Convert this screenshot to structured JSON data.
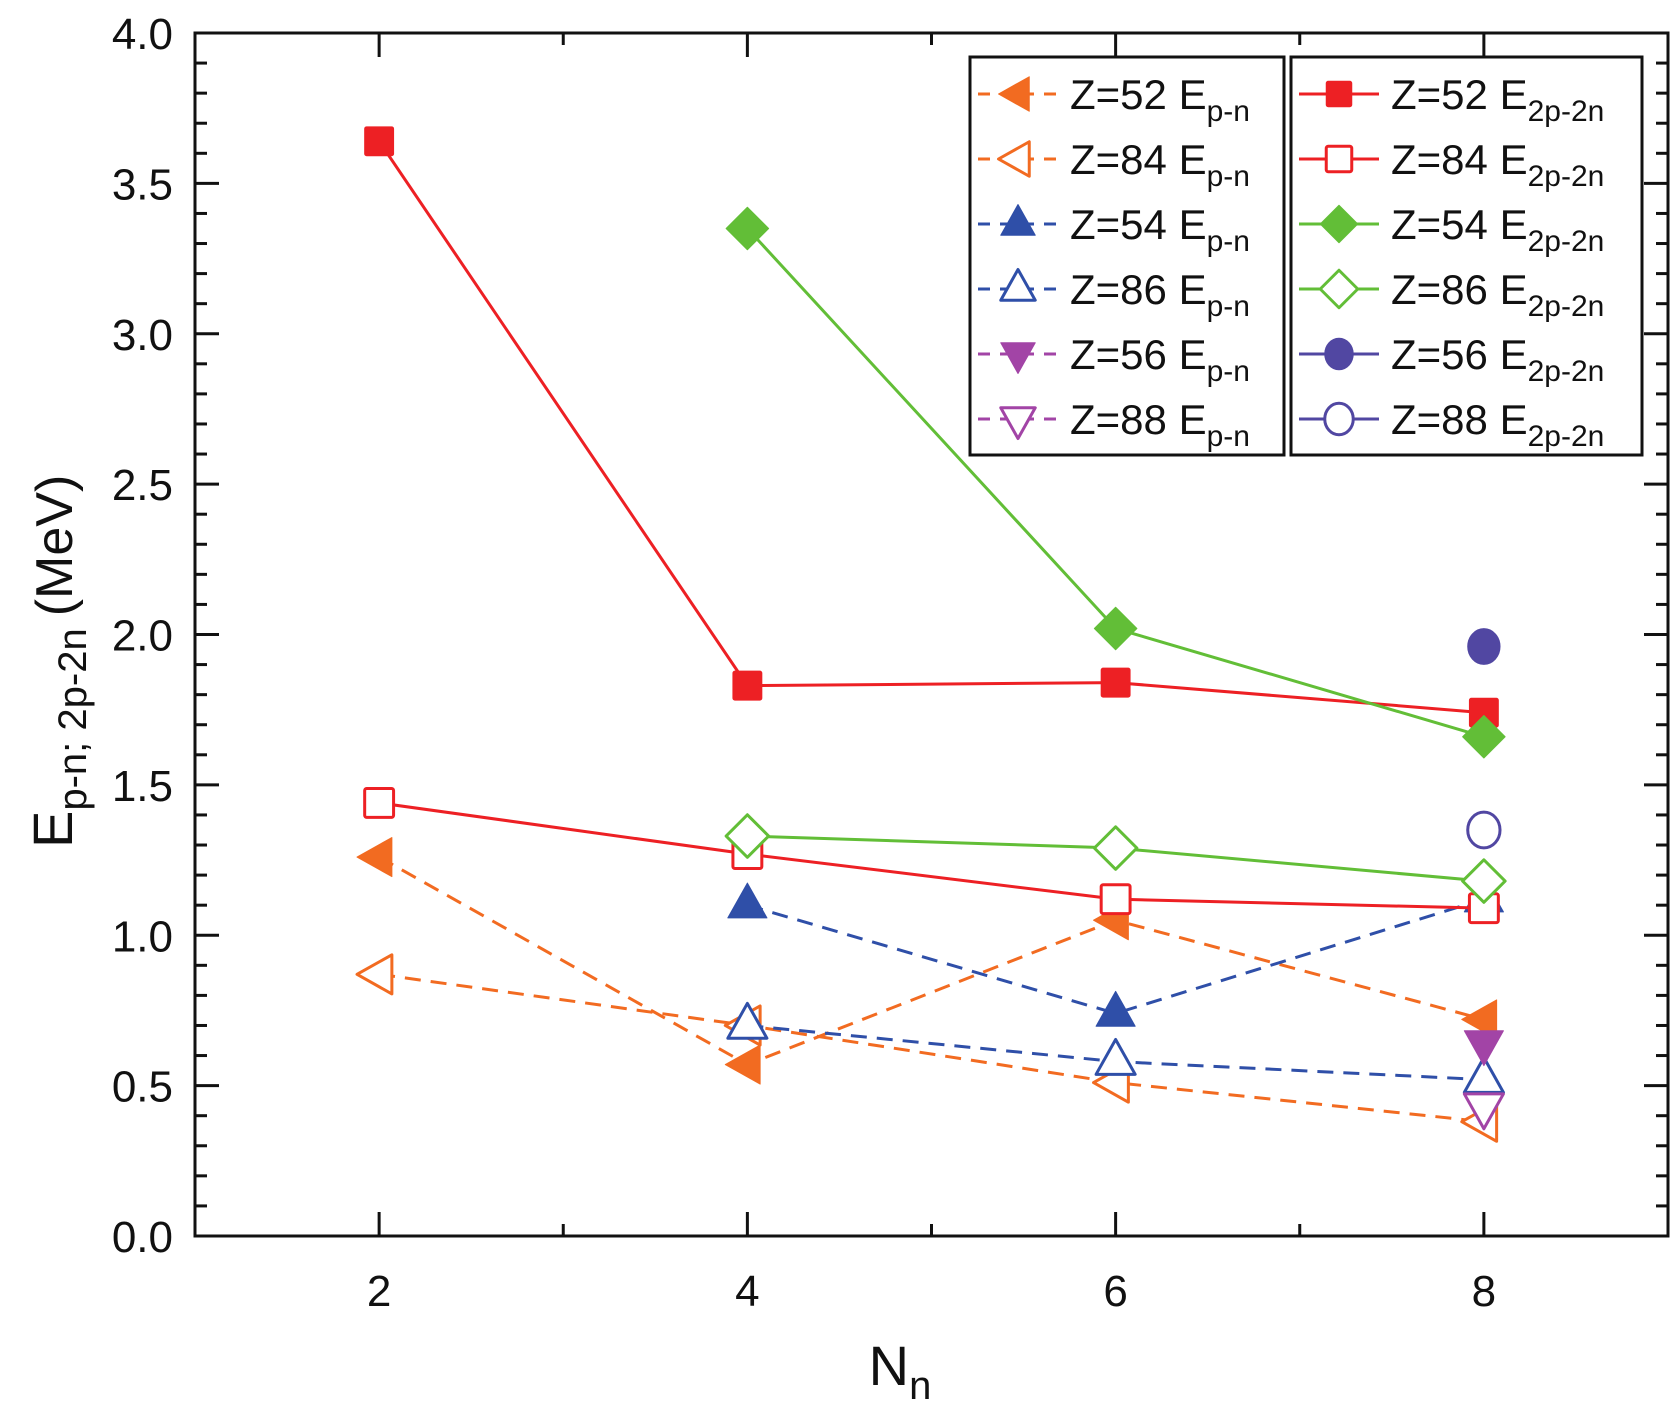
{
  "chart_data": {
    "type": "line",
    "title": "",
    "xlabel": {
      "main": "N",
      "sub": "n"
    },
    "ylabel": {
      "main": "E",
      "sub": "p-n; 2p-2n",
      "unit": "(MeV)"
    },
    "xlim": [
      1,
      9
    ],
    "ylim": [
      0.0,
      4.0
    ],
    "x_ticks": [
      2,
      4,
      6,
      8
    ],
    "x_tick_labels": [
      "2",
      "4",
      "6",
      "8"
    ],
    "y_ticks": [
      0.0,
      0.5,
      1.0,
      1.5,
      2.0,
      2.5,
      3.0,
      3.5,
      4.0
    ],
    "y_tick_labels": [
      "0.0",
      "0.5",
      "1.0",
      "1.5",
      "2.0",
      "2.5",
      "3.0",
      "3.5",
      "4.0"
    ],
    "grid": false,
    "legend_placement": "top-right",
    "series": [
      {
        "name": "Z=52 E",
        "sub": "p-n",
        "color": "#F26B21",
        "marker": "triangle-left",
        "filled": true,
        "dash": true,
        "x": [
          2,
          4,
          6,
          8
        ],
        "y": [
          1.26,
          0.57,
          1.05,
          0.72
        ]
      },
      {
        "name": "Z=84 E",
        "sub": "p-n",
        "color": "#F26B21",
        "marker": "triangle-left",
        "filled": false,
        "dash": true,
        "x": [
          2,
          4,
          6,
          8
        ],
        "y": [
          0.87,
          0.7,
          0.51,
          0.38
        ]
      },
      {
        "name": "Z=54 E",
        "sub": "p-n",
        "color": "#2F4FA8",
        "marker": "triangle-up",
        "filled": true,
        "dash": true,
        "x": [
          4,
          6,
          8
        ],
        "y": [
          1.1,
          0.74,
          1.12
        ]
      },
      {
        "name": "Z=86 E",
        "sub": "p-n",
        "color": "#2F4FA8",
        "marker": "triangle-up",
        "filled": false,
        "dash": true,
        "x": [
          4,
          6,
          8
        ],
        "y": [
          0.7,
          0.58,
          0.52
        ]
      },
      {
        "name": "Z=56 E",
        "sub": "p-n",
        "color": "#A244A6",
        "marker": "triangle-down",
        "filled": true,
        "dash": true,
        "x": [
          8
        ],
        "y": [
          0.64
        ]
      },
      {
        "name": "Z=88 E",
        "sub": "p-n",
        "color": "#A244A6",
        "marker": "triangle-down",
        "filled": false,
        "dash": true,
        "x": [
          8
        ],
        "y": [
          0.43
        ]
      },
      {
        "name": "Z=52 E",
        "sub": "2p-2n",
        "color": "#ED2024",
        "marker": "square",
        "filled": true,
        "dash": false,
        "x": [
          2,
          4,
          6,
          8
        ],
        "y": [
          3.64,
          1.83,
          1.84,
          1.74
        ]
      },
      {
        "name": "Z=84 E",
        "sub": "2p-2n",
        "color": "#ED2024",
        "marker": "square",
        "filled": false,
        "dash": false,
        "x": [
          2,
          4,
          6,
          8
        ],
        "y": [
          1.44,
          1.27,
          1.12,
          1.09
        ]
      },
      {
        "name": "Z=54 E",
        "sub": "2p-2n",
        "color": "#62BE37",
        "marker": "diamond",
        "filled": true,
        "dash": false,
        "x": [
          4,
          6,
          8
        ],
        "y": [
          3.35,
          2.02,
          1.66
        ]
      },
      {
        "name": "Z=86 E",
        "sub": "2p-2n",
        "color": "#62BE37",
        "marker": "diamond",
        "filled": false,
        "dash": false,
        "x": [
          4,
          6,
          8
        ],
        "y": [
          1.33,
          1.29,
          1.18
        ]
      },
      {
        "name": "Z=56 E",
        "sub": "2p-2n",
        "color": "#5147A2",
        "marker": "circle",
        "filled": true,
        "dash": false,
        "x": [
          8
        ],
        "y": [
          1.96
        ]
      },
      {
        "name": "Z=88 E",
        "sub": "2p-2n",
        "color": "#5147A2",
        "marker": "circle",
        "filled": false,
        "dash": false,
        "x": [
          8
        ],
        "y": [
          1.35
        ]
      }
    ]
  }
}
